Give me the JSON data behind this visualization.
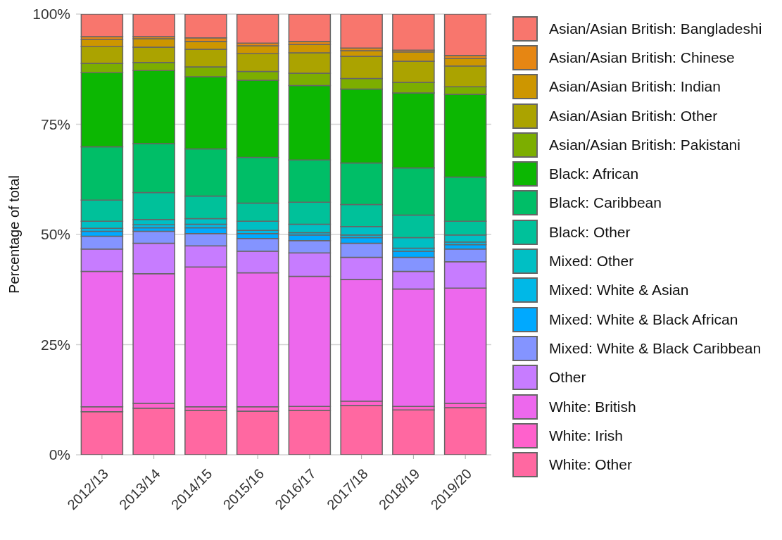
{
  "chart_data": {
    "type": "bar",
    "stacked": true,
    "ylabel": "Percentage of total",
    "categories": [
      "2012/13",
      "2013/14",
      "2014/15",
      "2015/16",
      "2016/17",
      "2017/18",
      "2018/19",
      "2019/20"
    ],
    "ylim": [
      0,
      100
    ],
    "yticks": [
      {
        "value": 0,
        "label": "0%"
      },
      {
        "value": 25,
        "label": "25%"
      },
      {
        "value": 50,
        "label": "50%"
      },
      {
        "value": 75,
        "label": "75%"
      },
      {
        "value": 100,
        "label": "100%"
      }
    ],
    "grid": "y",
    "legend": "right",
    "series": [
      {
        "name": "White: Other",
        "color": "#ff68a1",
        "values": [
          9.8,
          10.6,
          10.1,
          9.9,
          10.1,
          11.2,
          10.2,
          10.7
        ]
      },
      {
        "name": "White: Irish",
        "color": "#ff61cc",
        "values": [
          1.1,
          1.1,
          0.8,
          1.0,
          0.9,
          1.0,
          0.8,
          1.0
        ]
      },
      {
        "name": "White: British",
        "color": "#ed68ed",
        "values": [
          30.7,
          29.4,
          31.7,
          30.4,
          29.5,
          27.6,
          26.6,
          26.1
        ]
      },
      {
        "name": "Other",
        "color": "#c77cff",
        "values": [
          5.1,
          6.9,
          4.8,
          4.9,
          5.3,
          5.0,
          4.0,
          6.0
        ]
      },
      {
        "name": "Mixed: White & Black Caribbean",
        "color": "#8494ff",
        "values": [
          2.9,
          2.7,
          2.8,
          2.9,
          2.8,
          3.2,
          3.2,
          2.9
        ]
      },
      {
        "name": "Mixed: White & Black African",
        "color": "#00a9ff",
        "values": [
          1.1,
          0.8,
          1.3,
          1.1,
          1.3,
          1.3,
          1.4,
          1.0
        ]
      },
      {
        "name": "Mixed: White & Asian",
        "color": "#00b8e7",
        "values": [
          0.7,
          0.7,
          0.8,
          0.7,
          0.5,
          0.6,
          0.7,
          0.6
        ]
      },
      {
        "name": "Mixed: Other",
        "color": "#00bfc4",
        "values": [
          1.6,
          1.2,
          1.3,
          2.1,
          1.9,
          1.9,
          2.4,
          1.6
        ]
      },
      {
        "name": "Black: Other",
        "color": "#00c19a",
        "values": [
          4.8,
          6.1,
          5.1,
          4.1,
          5.0,
          5.0,
          5.1,
          3.1
        ]
      },
      {
        "name": "Black: Caribbean",
        "color": "#00be67",
        "values": [
          12.1,
          11.1,
          10.7,
          10.4,
          9.6,
          9.4,
          10.7,
          10.0
        ]
      },
      {
        "name": "Black: African",
        "color": "#0cb702",
        "values": [
          16.8,
          16.6,
          16.4,
          17.5,
          16.9,
          16.8,
          17.0,
          18.8
        ]
      },
      {
        "name": "Asian/Asian British: Pakistani",
        "color": "#7cae00",
        "values": [
          2.1,
          1.8,
          2.2,
          2.0,
          2.8,
          2.4,
          2.4,
          1.7
        ]
      },
      {
        "name": "Asian/Asian British: Other",
        "color": "#aba300",
        "values": [
          3.8,
          3.5,
          4.0,
          4.0,
          4.6,
          5.0,
          4.8,
          4.7
        ]
      },
      {
        "name": "Asian/Asian British: Indian",
        "color": "#cd9600",
        "values": [
          1.6,
          1.9,
          1.8,
          1.8,
          1.9,
          1.3,
          2.1,
          1.7
        ]
      },
      {
        "name": "Asian/Asian British: Chinese",
        "color": "#e68613",
        "values": [
          0.7,
          0.5,
          0.8,
          0.6,
          0.7,
          0.6,
          0.4,
          0.7
        ]
      },
      {
        "name": "Asian/Asian British: Bangladeshi",
        "color": "#f8766d",
        "values": [
          5.1,
          5.1,
          5.4,
          6.6,
          6.2,
          7.7,
          8.2,
          9.4
        ]
      }
    ]
  }
}
